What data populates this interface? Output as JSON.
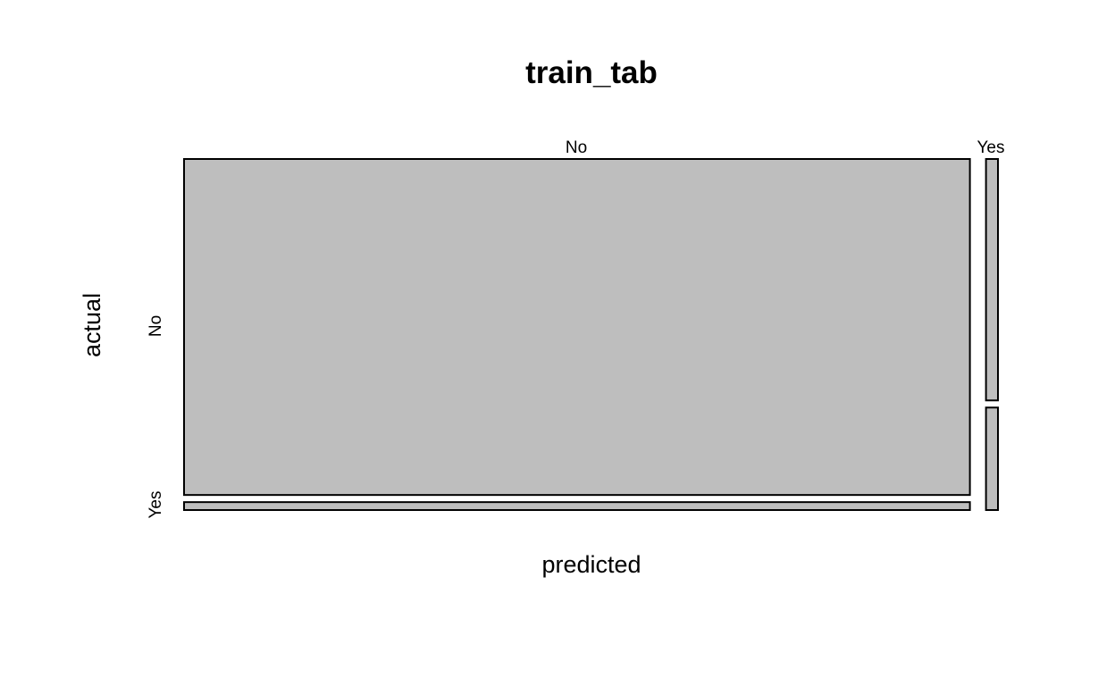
{
  "chart_data": {
    "type": "mosaic",
    "title": "train_tab",
    "xlabel": "predicted",
    "ylabel": "actual",
    "x_categories": [
      "No",
      "Yes"
    ],
    "y_categories": [
      "No",
      "Yes"
    ],
    "cell_fill": "#bebebe",
    "proportions": {
      "predicted": {
        "No": 0.985,
        "Yes": 0.015
      },
      "actual_given_predicted": {
        "No": {
          "No": 0.977,
          "Yes": 0.023
        },
        "Yes": {
          "No": 0.702,
          "Yes": 0.298
        }
      }
    }
  }
}
